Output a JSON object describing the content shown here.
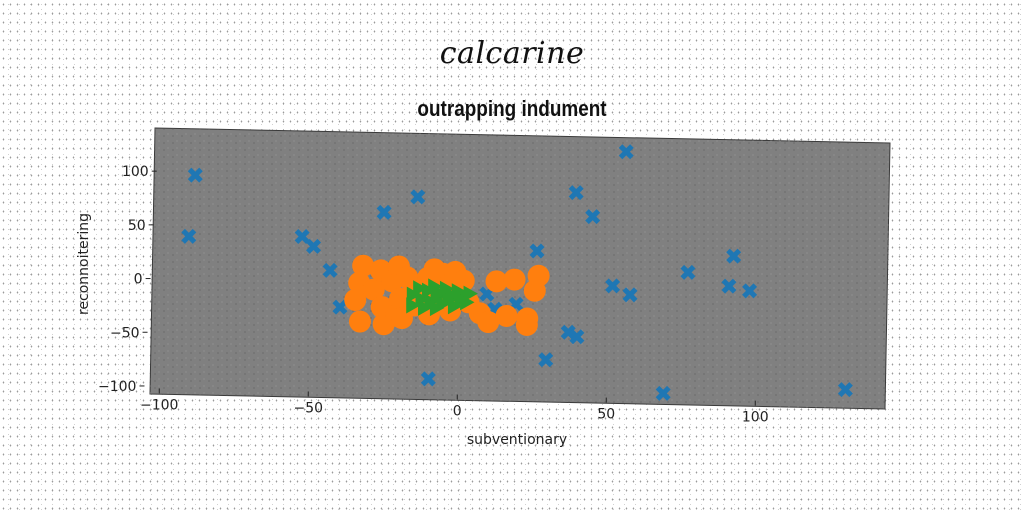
{
  "suptitle": "calcarine",
  "chart_data": {
    "type": "scatter",
    "title": "outrapping indument",
    "xlabel": "subventionary",
    "ylabel": "reconnoitering",
    "xlim": [
      -105,
      142
    ],
    "ylim": [
      -102,
      143
    ],
    "xticks": [
      -100,
      -50,
      0,
      50,
      100
    ],
    "yticks": [
      -100,
      -50,
      0,
      50,
      100
    ],
    "background": "#808080",
    "grid": false,
    "series": [
      {
        "color": "#1f77b4",
        "marker": "X",
        "points": [
          [
            -92,
            97
          ],
          [
            -93,
            40
          ],
          [
            -55,
            42
          ],
          [
            -51,
            33
          ],
          [
            -45,
            11
          ],
          [
            -41,
            -23
          ],
          [
            -28,
            66
          ],
          [
            -17,
            81
          ],
          [
            -10,
            -88
          ],
          [
            8,
            -8
          ],
          [
            11,
            -22
          ],
          [
            18,
            -17
          ],
          [
            24,
            33
          ],
          [
            29,
            -68
          ],
          [
            36,
            88
          ],
          [
            36,
            -42
          ],
          [
            39,
            -46
          ],
          [
            42,
            66
          ],
          [
            50,
            2
          ],
          [
            52,
            127
          ],
          [
            56,
            -6
          ],
          [
            69,
            -97
          ],
          [
            75,
            16
          ],
          [
            89,
            4
          ],
          [
            90,
            32
          ],
          [
            96,
            0
          ],
          [
            130,
            -90
          ]
        ]
      },
      {
        "color": "#ff7f0e",
        "marker": "o",
        "points": [
          [
            -34,
            16
          ],
          [
            -35,
            0
          ],
          [
            -36,
            -16
          ],
          [
            -34,
            -36
          ],
          [
            -30,
            -6
          ],
          [
            -28,
            12
          ],
          [
            -27,
            -22
          ],
          [
            -26,
            -38
          ],
          [
            -24,
            2
          ],
          [
            -22,
            -30
          ],
          [
            -22,
            16
          ],
          [
            -21,
            -14
          ],
          [
            -20,
            -32
          ],
          [
            -19,
            6
          ],
          [
            -17,
            0
          ],
          [
            -16,
            -20
          ],
          [
            -13,
            -8
          ],
          [
            -12,
            6
          ],
          [
            -11,
            -28
          ],
          [
            -10,
            14
          ],
          [
            -8,
            -14
          ],
          [
            -7,
            10
          ],
          [
            -6,
            -2
          ],
          [
            -4,
            -24
          ],
          [
            -3,
            12
          ],
          [
            -2,
            -6
          ],
          [
            0,
            4
          ],
          [
            2,
            -16
          ],
          [
            6,
            -26
          ],
          [
            9,
            -34
          ],
          [
            11,
            4
          ],
          [
            15,
            -28
          ],
          [
            17,
            6
          ],
          [
            22,
            -30
          ],
          [
            22,
            -36
          ],
          [
            24,
            -4
          ],
          [
            25,
            10
          ]
        ]
      },
      {
        "color": "#2ca02c",
        "marker": ">",
        "points": [
          [
            -17,
            -10
          ],
          [
            -17,
            -20
          ],
          [
            -15,
            -4
          ],
          [
            -14,
            -14
          ],
          [
            -13,
            -22
          ],
          [
            -12,
            -6
          ],
          [
            -11,
            -16
          ],
          [
            -10,
            -2
          ],
          [
            -9,
            -12
          ],
          [
            -9,
            -22
          ],
          [
            -8,
            -8
          ],
          [
            -7,
            -18
          ],
          [
            -6,
            -4
          ],
          [
            -5,
            -14
          ],
          [
            -4,
            -10
          ],
          [
            -3,
            -20
          ],
          [
            -2,
            -6
          ],
          [
            -1,
            -14
          ],
          [
            0,
            -10
          ],
          [
            1,
            -16
          ],
          [
            2,
            -8
          ]
        ]
      }
    ]
  }
}
